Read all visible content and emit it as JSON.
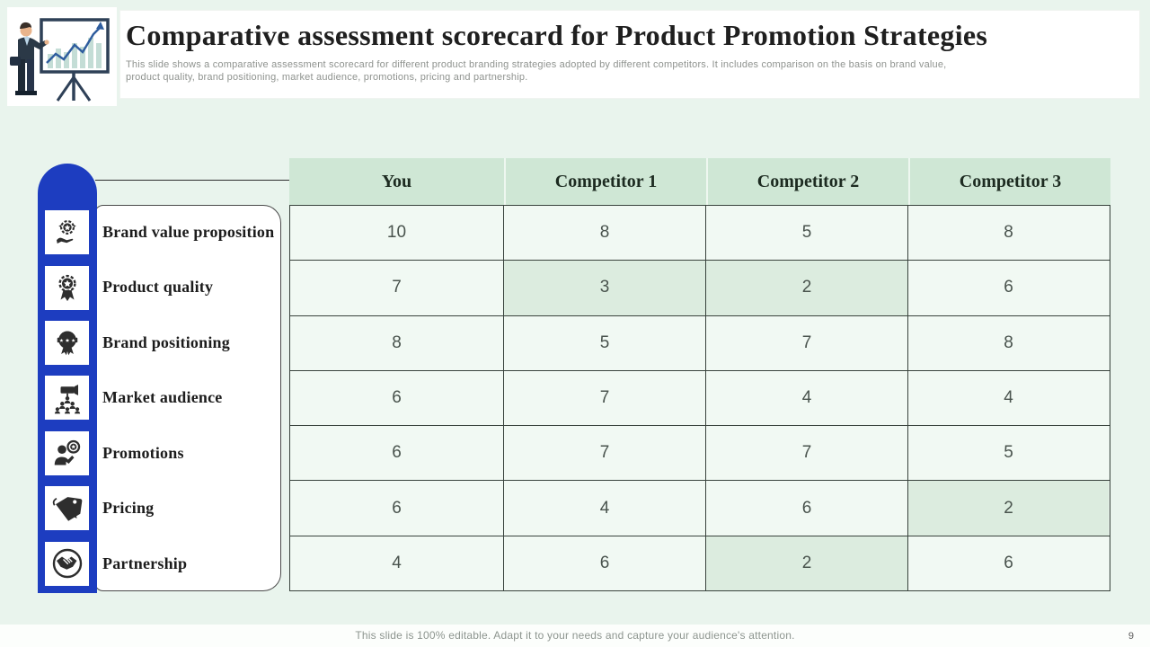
{
  "slide": {
    "title": "Comparative assessment scorecard for Product Promotion Strategies",
    "subtitle_line1": "This slide shows a  comparative assessment scorecard for different product branding strategies adopted by different competitors. It includes comparison on the basis on brand value,",
    "subtitle_line2": "product quality,  brand positioning, market audience, promotions, pricing and partnership.",
    "footer": "This slide is 100% editable. Adapt it to your needs and capture your audience's attention.",
    "page_number": "9"
  },
  "sidebar": {
    "items": [
      {
        "label": "Brand value proposition",
        "icon": "brand-value-icon"
      },
      {
        "label": "Product quality",
        "icon": "product-quality-icon"
      },
      {
        "label": "Brand  positioning",
        "icon": "brand-positioning-icon"
      },
      {
        "label": "Market audience",
        "icon": "market-audience-icon"
      },
      {
        "label": "Promotions",
        "icon": "promotions-icon"
      },
      {
        "label": "Pricing",
        "icon": "pricing-icon"
      },
      {
        "label": "Partnership",
        "icon": "partnership-icon"
      }
    ]
  },
  "table": {
    "columns": [
      "You",
      "Competitor 1",
      "Competitor 2",
      "Competitor 3"
    ],
    "rows": [
      {
        "category": "Brand value proposition",
        "values": [
          "10",
          "8",
          "5",
          "8"
        ],
        "highlighted": []
      },
      {
        "category": "Product quality",
        "values": [
          "7",
          "3",
          "2",
          "6"
        ],
        "highlighted": [
          1,
          2
        ]
      },
      {
        "category": "Brand  positioning",
        "values": [
          "8",
          "5",
          "7",
          "8"
        ],
        "highlighted": []
      },
      {
        "category": "Market audience",
        "values": [
          "6",
          "7",
          "4",
          "4"
        ],
        "highlighted": []
      },
      {
        "category": "Promotions",
        "values": [
          "6",
          "7",
          "7",
          "5"
        ],
        "highlighted": []
      },
      {
        "category": "Pricing",
        "values": [
          "6",
          "4",
          "6",
          "2"
        ],
        "highlighted": [
          3
        ]
      },
      {
        "category": "Partnership",
        "values": [
          "4",
          "6",
          "2",
          "6"
        ],
        "highlighted": [
          2
        ]
      }
    ]
  },
  "colors": {
    "background": "#e9f4ed",
    "accent_blue": "#1d3dc0",
    "table_header_bg": "#cfe7d5",
    "cell_bg": "#f1f9f3",
    "cell_highlight_bg": "#dcecdf",
    "border_dark": "#39433d"
  }
}
